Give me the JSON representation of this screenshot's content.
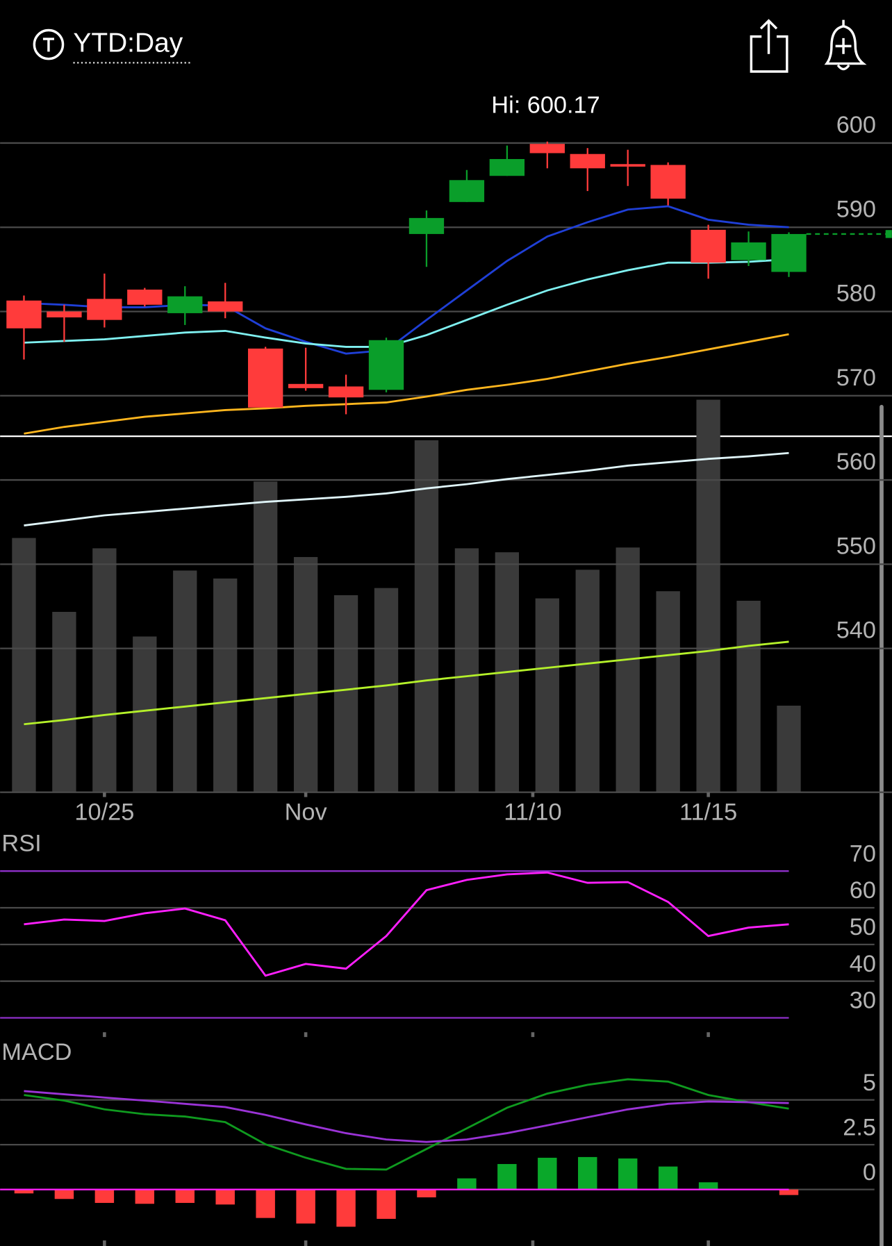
{
  "header": {
    "title": "YTD:Day"
  },
  "chart_data": [
    {
      "type": "candlestick",
      "annotation": "Hi: 600.17",
      "x": [
        0,
        1,
        2,
        3,
        4,
        5,
        6,
        7,
        8,
        9,
        10,
        11,
        12,
        13,
        14,
        15,
        16,
        17,
        18,
        19
      ],
      "xlim": [
        -0.5923,
        21.56
      ],
      "xticks": [
        {
          "value": 2,
          "label": "10/25"
        },
        {
          "value": 7,
          "label": "Nov"
        },
        {
          "value": 12.64,
          "label": "11/10"
        },
        {
          "value": 17,
          "label": "11/15"
        }
      ],
      "ylim": [
        525,
        605
      ],
      "yticks": [
        540,
        550,
        560,
        570,
        580,
        590,
        600
      ],
      "grid": true,
      "open": [
        581.3,
        580.0,
        581.5,
        582.6,
        579.8,
        581.2,
        575.6,
        571.4,
        571.1,
        570.7,
        589.2,
        593.0,
        596.1,
        599.9,
        598.7,
        597.5,
        597.4,
        589.7,
        586.1,
        584.7
      ],
      "high": [
        581.9,
        580.8,
        584.5,
        582.8,
        583.0,
        583.4,
        575.8,
        575.7,
        572.5,
        576.9,
        592.0,
        596.8,
        599.7,
        600.17,
        599.4,
        599.2,
        597.7,
        590.3,
        589.5,
        589.4
      ],
      "low": [
        574.3,
        576.4,
        578.1,
        580.6,
        578.4,
        579.2,
        568.6,
        570.6,
        567.8,
        570.4,
        585.3,
        593.0,
        596.1,
        597.0,
        594.3,
        594.9,
        592.6,
        583.9,
        585.4,
        584.1
      ],
      "close": [
        578.0,
        579.3,
        579.0,
        580.8,
        581.8,
        580.0,
        568.6,
        570.9,
        569.8,
        576.6,
        591.1,
        595.6,
        598.1,
        598.8,
        597.0,
        597.2,
        593.4,
        585.8,
        588.2,
        589.2
      ],
      "up_color": "#0a9e2a",
      "down_color": "#ff3b3b",
      "series": [
        {
          "color": "#1f3fd6",
          "values": [
            581.0,
            580.8,
            580.5,
            580.5,
            580.8,
            580.7,
            578.0,
            576.4,
            575.0,
            575.4,
            579.0,
            582.5,
            586.0,
            588.9,
            590.6,
            592.1,
            592.5,
            590.9,
            590.3,
            590.0
          ]
        },
        {
          "color": "#7ff0f0",
          "values": [
            576.3,
            576.5,
            576.7,
            577.1,
            577.5,
            577.7,
            576.9,
            576.2,
            575.8,
            575.8,
            577.2,
            579.0,
            580.8,
            582.5,
            583.8,
            584.9,
            585.8,
            585.8,
            585.9,
            586.2
          ]
        },
        {
          "color": "#ffb61e",
          "values": [
            565.5,
            566.3,
            566.9,
            567.5,
            567.9,
            568.3,
            568.5,
            568.8,
            569.0,
            569.2,
            569.9,
            570.7,
            571.3,
            572.0,
            572.9,
            573.8,
            574.6,
            575.5,
            576.4,
            577.3
          ]
        },
        {
          "color": "#dff4f8",
          "values": [
            554.6,
            555.2,
            555.8,
            556.2,
            556.6,
            557.0,
            557.4,
            557.7,
            558.0,
            558.4,
            559.0,
            559.5,
            560.1,
            560.6,
            561.1,
            561.7,
            562.1,
            562.5,
            562.8,
            563.2
          ]
        },
        {
          "color": "#b4f02a",
          "values": [
            531.0,
            531.5,
            532.1,
            532.6,
            533.1,
            533.6,
            534.1,
            534.6,
            535.1,
            535.6,
            536.2,
            536.7,
            537.2,
            537.7,
            538.2,
            538.7,
            539.2,
            539.7,
            540.3,
            540.8
          ]
        }
      ],
      "volume": {
        "color": "#3a3a3a",
        "ylim": [
          0,
          500
        ],
        "values": [
          320,
          227,
          307,
          196,
          279,
          269,
          391,
          296,
          248,
          257,
          443,
          307,
          302,
          244,
          280,
          308,
          253,
          494,
          241,
          109
        ]
      }
    },
    {
      "type": "line",
      "title": "RSI",
      "ylim": [
        25,
        80
      ],
      "yticks": [
        30,
        40,
        50,
        60,
        70
      ],
      "grid": true,
      "limit_color": "#8e2fc9",
      "series": [
        {
          "color": "#ff1fff",
          "values": [
            55.5,
            56.8,
            56.4,
            58.5,
            59.8,
            56.6,
            41.5,
            44.7,
            43.4,
            52.3,
            64.8,
            67.6,
            69.1,
            69.6,
            66.8,
            67.0,
            61.6,
            52.3,
            54.6,
            55.5
          ]
        }
      ]
    },
    {
      "type": "macd",
      "title": "MACD",
      "ylim": [
        -2.8,
        7
      ],
      "yticks": [
        0,
        2.5,
        5
      ],
      "grid": true,
      "zero_color": "#ff1fff",
      "series": [
        {
          "color": "#0f9a1f",
          "values": [
            5.27,
            4.96,
            4.47,
            4.2,
            4.07,
            3.76,
            2.52,
            1.77,
            1.15,
            1.11,
            2.26,
            3.41,
            4.56,
            5.35,
            5.84,
            6.15,
            6.02,
            5.27,
            4.87,
            4.51
          ]
        },
        {
          "color": "#9a33d6",
          "values": [
            5.49,
            5.31,
            5.13,
            4.96,
            4.78,
            4.6,
            4.16,
            3.63,
            3.14,
            2.79,
            2.65,
            2.79,
            3.14,
            3.58,
            4.03,
            4.47,
            4.78,
            4.91,
            4.87,
            4.82
          ]
        }
      ],
      "histogram": {
        "up_color": "#0aa82a",
        "down_color": "#ff3b3b",
        "values": [
          -0.22,
          -0.53,
          -0.75,
          -0.8,
          -0.75,
          -0.84,
          -1.59,
          -1.9,
          -2.08,
          -1.64,
          -0.44,
          0.62,
          1.42,
          1.77,
          1.81,
          1.73,
          1.28,
          0.4,
          0.0,
          -0.31
        ]
      }
    }
  ]
}
